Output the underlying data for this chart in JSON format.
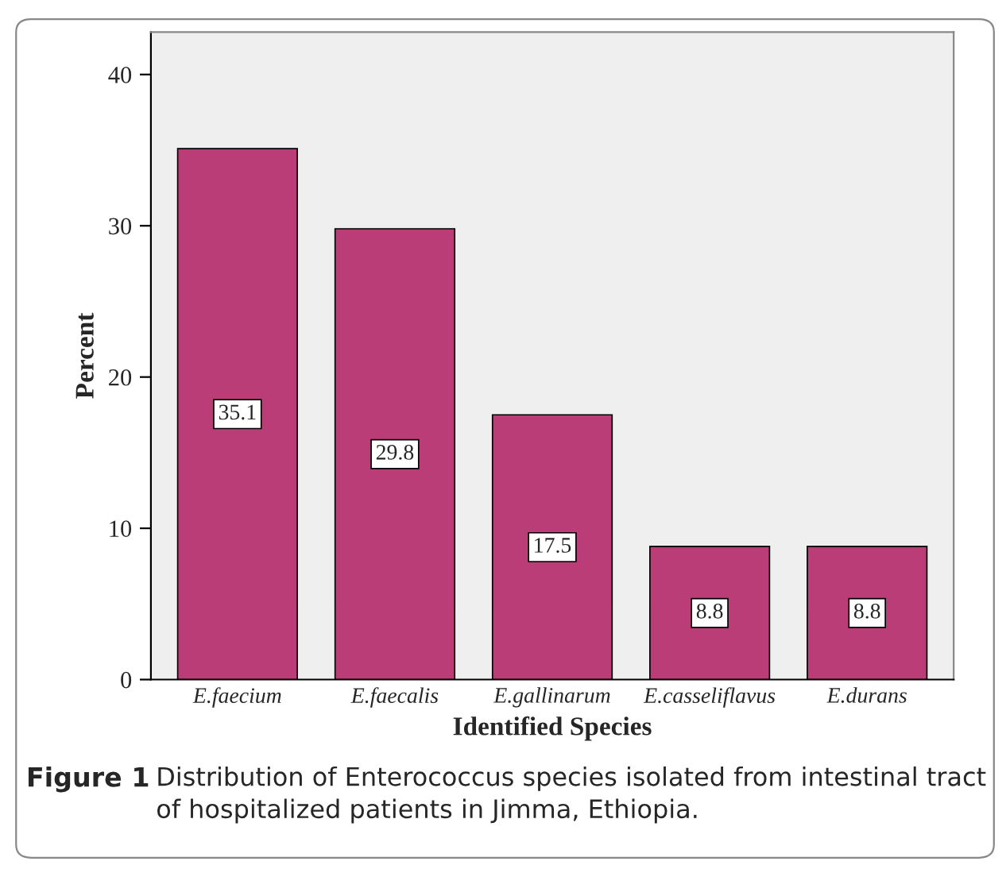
{
  "chart_data": {
    "type": "bar",
    "xlabel": "Identified Species",
    "ylabel": "Percent",
    "categories": [
      "E.faecium",
      "E.faecalis",
      "E.gallinarum",
      "E.casseliflavus",
      "E.durans"
    ],
    "values": [
      35.1,
      29.8,
      17.5,
      8.8,
      8.8
    ],
    "color": "#bb3d78",
    "ylim": [
      0,
      42.8
    ],
    "yticks": [
      0,
      10,
      20,
      30,
      40
    ],
    "data_labels": true,
    "grid": false,
    "legend": false,
    "annotations": [
      "Figure 1",
      "Distribution of Enterococcus species isolated from intestinal tract of hospitalized patients in Jimma, Ethiopia."
    ]
  }
}
